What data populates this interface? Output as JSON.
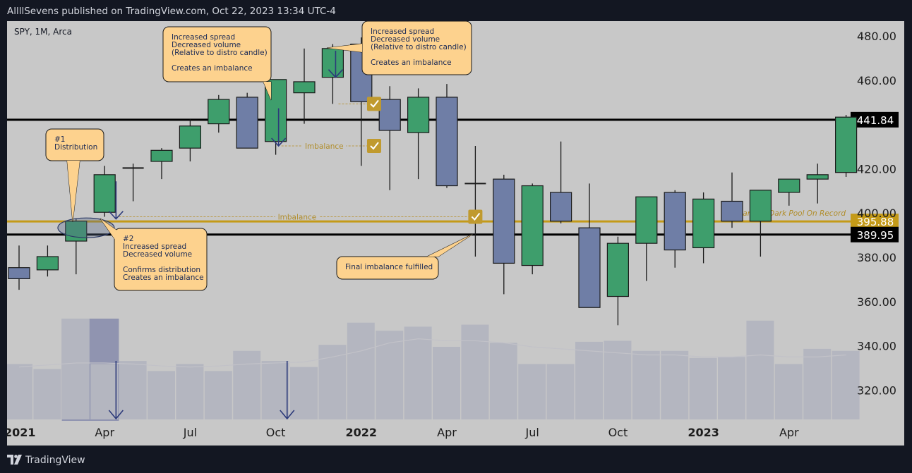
{
  "header": {
    "publish_line": "AllllSevens published on TradingView.com, Oct 22, 2023 13:34 UTC-4"
  },
  "footer": {
    "brand": "TradingView",
    "logo_icon": "tradingview-logo-icon"
  },
  "colors": {
    "background": "#131722",
    "plot": "#c8c8c8",
    "up": "#3e9e6c",
    "down": "#6f7ea6",
    "level": "#000000",
    "darkpool": "#c49a18",
    "callout": "#fdd28e",
    "callout_text": "#1b2a55"
  },
  "chart_data": {
    "type": "candlestick",
    "symbol": "SPY, 1M, Arca",
    "x_labels": [
      "2021",
      "Apr",
      "Jul",
      "Oct",
      "2022",
      "Apr",
      "Jul",
      "Oct",
      "2023",
      "Apr"
    ],
    "x_label_months": [
      0,
      3,
      6,
      9,
      12,
      15,
      18,
      21,
      24,
      27
    ],
    "y_ticks": [
      "480.00",
      "460.00",
      "420.00",
      "400.00",
      "380.00",
      "360.00",
      "340.00",
      "320.00"
    ],
    "y_tick_values": [
      480,
      460,
      420,
      400,
      380,
      360,
      340,
      320
    ],
    "ylim": [
      305,
      490
    ],
    "candles": [
      {
        "m": 0,
        "o": 375,
        "h": 385,
        "l": 365,
        "c": 370
      },
      {
        "m": 1,
        "o": 374,
        "h": 385,
        "l": 371,
        "c": 380
      },
      {
        "m": 2,
        "o": 387,
        "h": 397,
        "l": 372,
        "c": 396
      },
      {
        "m": 3,
        "o": 400,
        "h": 421,
        "l": 398,
        "c": 417
      },
      {
        "m": 4,
        "o": 420,
        "h": 422,
        "l": 405,
        "c": 420
      },
      {
        "m": 5,
        "o": 423,
        "h": 429,
        "l": 415,
        "c": 428
      },
      {
        "m": 6,
        "o": 429,
        "h": 442,
        "l": 423,
        "c": 439
      },
      {
        "m": 7,
        "o": 440,
        "h": 453,
        "l": 436,
        "c": 451
      },
      {
        "m": 8,
        "o": 452,
        "h": 454,
        "l": 429,
        "c": 429
      },
      {
        "m": 9,
        "o": 432,
        "h": 460,
        "l": 426,
        "c": 460
      },
      {
        "m": 10,
        "o": 454,
        "h": 474,
        "l": 440,
        "c": 459
      },
      {
        "m": 11,
        "o": 461,
        "h": 476,
        "l": 449,
        "c": 474
      },
      {
        "m": 12,
        "o": 476,
        "h": 479,
        "l": 421,
        "c": 450
      },
      {
        "m": 13,
        "o": 451,
        "h": 457,
        "l": 410,
        "c": 437
      },
      {
        "m": 14,
        "o": 436,
        "h": 456,
        "l": 415,
        "c": 452
      },
      {
        "m": 15,
        "o": 452,
        "h": 458,
        "l": 411,
        "c": 412
      },
      {
        "m": 16,
        "o": 413,
        "h": 430,
        "l": 380,
        "c": 413
      },
      {
        "m": 17,
        "o": 415,
        "h": 417,
        "l": 363,
        "c": 377
      },
      {
        "m": 18,
        "o": 376,
        "h": 413,
        "l": 372,
        "c": 412
      },
      {
        "m": 19,
        "o": 409,
        "h": 432,
        "l": 395,
        "c": 396
      },
      {
        "m": 20,
        "o": 393,
        "h": 413,
        "l": 357,
        "c": 357
      },
      {
        "m": 21,
        "o": 362,
        "h": 389,
        "l": 349,
        "c": 386
      },
      {
        "m": 22,
        "o": 386,
        "h": 407,
        "l": 369,
        "c": 407
      },
      {
        "m": 23,
        "o": 409,
        "h": 410,
        "l": 375,
        "c": 383
      },
      {
        "m": 24,
        "o": 384,
        "h": 409,
        "l": 377,
        "c": 406
      },
      {
        "m": 25,
        "o": 405,
        "h": 418,
        "l": 393,
        "c": 396
      },
      {
        "m": 26,
        "o": 396,
        "h": 410,
        "l": 380,
        "c": 410
      },
      {
        "m": 27,
        "o": 409,
        "h": 415,
        "l": 403,
        "c": 415
      },
      {
        "m": 28,
        "o": 415,
        "h": 422,
        "l": 404,
        "c": 417
      },
      {
        "m": 29,
        "o": 418,
        "h": 444,
        "l": 416,
        "c": 443
      }
    ],
    "volume": {
      "heights_percent": [
        55,
        50,
        100,
        55,
        58,
        48,
        55,
        48,
        68,
        58,
        52,
        74,
        96,
        88,
        92,
        72,
        94,
        76,
        55,
        55,
        77,
        78,
        68,
        68,
        61,
        62,
        98,
        55,
        70,
        68
      ],
      "ma_percent": [
        52,
        54,
        56,
        56,
        55,
        53,
        52,
        53,
        55,
        56,
        57,
        62,
        68,
        76,
        80,
        78,
        78,
        76,
        72,
        70,
        68,
        66,
        64,
        64,
        62,
        62,
        64,
        62,
        62,
        64
      ]
    },
    "levels": [
      {
        "value": 441.84,
        "label": "441.84",
        "style": "black"
      },
      {
        "value": 395.88,
        "label": "395.88",
        "style": "gold",
        "text": "Largest Dark Pool On Record"
      },
      {
        "value": 389.95,
        "label": "389.95",
        "style": "black"
      }
    ],
    "imbalance_lines": [
      {
        "value": 398,
        "from_m": 3.5,
        "to_m": 16,
        "text": "Imbalance"
      },
      {
        "value": 430,
        "from_m": 9.2,
        "to_m": 12.2,
        "text": "Imbalance"
      },
      {
        "value": 449,
        "from_m": 11.2,
        "to_m": 12.2,
        "text": ""
      }
    ],
    "check_markers": [
      {
        "m": 12.45,
        "v": 449
      },
      {
        "m": 12.45,
        "v": 430
      },
      {
        "m": 16,
        "v": 398
      }
    ],
    "arrows": [
      {
        "m": 3.4,
        "from": 414,
        "to": 397
      },
      {
        "m": 9.1,
        "from": 447,
        "to": 430
      },
      {
        "m": 11.1,
        "from": 473,
        "to": 461
      }
    ],
    "volume_arrows": [
      3.4,
      9.4
    ],
    "volume_highlight": {
      "from_m": 1.5,
      "to_m": 3.5
    },
    "distribution_ellipse": {
      "m": 2.35,
      "v": 393
    },
    "annotations": [
      {
        "lines": [
          "#1",
          "Distribution"
        ],
        "box": "c1",
        "tail": "t1"
      },
      {
        "lines": [
          "#2",
          "Increased spread",
          "Decreased volume",
          "",
          "Confirms distribution",
          "Creates an imbalance"
        ],
        "box": "c2",
        "tail": "t2"
      },
      {
        "lines": [
          "Increased spread",
          "Decreased volume",
          "(Relative to distro candle)",
          "",
          "Creates an imbalance"
        ],
        "box": "c3",
        "tail": "t3"
      },
      {
        "lines": [
          "Increased spread",
          "Decreased volume",
          "(Relative to distro candle)",
          "",
          "Creates an imbalance"
        ],
        "box": "c4",
        "tail": "t4"
      },
      {
        "lines": [
          "Final imbalance fulfilled"
        ],
        "box": "c5",
        "tail": "t5"
      }
    ]
  }
}
